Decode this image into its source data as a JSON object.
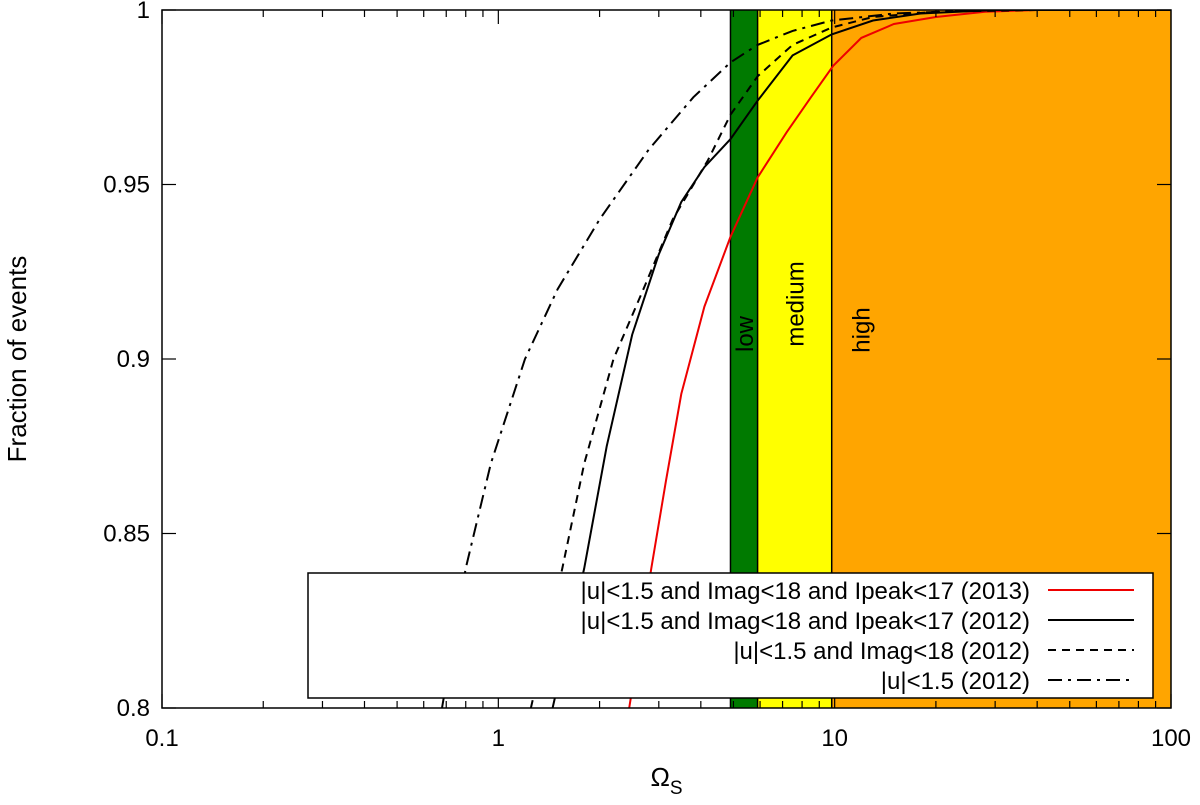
{
  "chart_data": {
    "type": "line",
    "xscale": "log",
    "xlim": [
      0.1,
      100
    ],
    "ylim": [
      0.8,
      1.0
    ],
    "xlabel": "Ω",
    "xlabel_sub": "S",
    "ylabel": "Fraction of events",
    "grid": false,
    "legend_position": "bottom-right",
    "x_tick_labels": [
      "0.1",
      "1",
      "10",
      "100"
    ],
    "y_tick_labels": [
      "0.8",
      "0.85",
      "0.9",
      "0.95",
      "1"
    ],
    "x_ticks": [
      0.1,
      1,
      10,
      100
    ],
    "y_ticks": [
      0.8,
      0.85,
      0.9,
      0.95,
      1.0
    ],
    "bands": [
      {
        "label": "low",
        "from": 4.9,
        "to": 5.9,
        "color": "#007a00"
      },
      {
        "label": "medium",
        "from": 5.9,
        "to": 9.8,
        "color": "#ffff00"
      },
      {
        "label": "high",
        "from": 9.8,
        "to": 100,
        "color": "#ffa500"
      }
    ],
    "series": [
      {
        "name": "|u|<1.5 and Imag<18 and Ipeak<17 (2013)",
        "color": "#ee0000",
        "dash": "solid",
        "points": [
          [
            2.45,
            0.8
          ],
          [
            2.85,
            0.84
          ],
          [
            3.15,
            0.865
          ],
          [
            3.5,
            0.89
          ],
          [
            4.1,
            0.915
          ],
          [
            4.9,
            0.935
          ],
          [
            5.9,
            0.952
          ],
          [
            7.2,
            0.965
          ],
          [
            8.5,
            0.975
          ],
          [
            9.9,
            0.984
          ],
          [
            12,
            0.992
          ],
          [
            15,
            0.996
          ],
          [
            20,
            0.998
          ],
          [
            28,
            0.9995
          ],
          [
            40,
            1.0
          ],
          [
            100,
            1.0
          ]
        ]
      },
      {
        "name": "|u|<1.5 and Imag<18 and Ipeak<17 (2012)",
        "color": "#000000",
        "dash": "solid",
        "points": [
          [
            1.45,
            0.8
          ],
          [
            1.8,
            0.84
          ],
          [
            2.1,
            0.875
          ],
          [
            2.5,
            0.907
          ],
          [
            3.0,
            0.93
          ],
          [
            3.5,
            0.945
          ],
          [
            4.1,
            0.955
          ],
          [
            4.9,
            0.963
          ],
          [
            5.9,
            0.974
          ],
          [
            7.5,
            0.987
          ],
          [
            9.8,
            0.993
          ],
          [
            13,
            0.997
          ],
          [
            18,
            0.999
          ],
          [
            30,
            1.0
          ],
          [
            100,
            1.0
          ]
        ]
      },
      {
        "name": "|u|<1.5 and Imag<18 (2012)",
        "color": "#000000",
        "dash": "dashed",
        "points": [
          [
            1.25,
            0.8
          ],
          [
            1.55,
            0.84
          ],
          [
            1.8,
            0.87
          ],
          [
            2.2,
            0.9
          ],
          [
            2.7,
            0.92
          ],
          [
            3.3,
            0.94
          ],
          [
            4.2,
            0.957
          ],
          [
            4.9,
            0.97
          ],
          [
            5.9,
            0.981
          ],
          [
            7.5,
            0.99
          ],
          [
            9.8,
            0.995
          ],
          [
            13,
            0.998
          ],
          [
            20,
            0.9995
          ],
          [
            40,
            1.0
          ],
          [
            100,
            1.0
          ]
        ]
      },
      {
        "name": "|u|<1.5 (2012)",
        "color": "#000000",
        "dash": "dashdot",
        "points": [
          [
            0.68,
            0.8
          ],
          [
            0.8,
            0.84
          ],
          [
            0.95,
            0.87
          ],
          [
            1.2,
            0.9
          ],
          [
            1.5,
            0.92
          ],
          [
            2.0,
            0.94
          ],
          [
            2.8,
            0.96
          ],
          [
            3.8,
            0.975
          ],
          [
            4.9,
            0.985
          ],
          [
            5.9,
            0.99
          ],
          [
            7.5,
            0.994
          ],
          [
            9.8,
            0.997
          ],
          [
            15,
            0.999
          ],
          [
            30,
            1.0
          ],
          [
            100,
            1.0
          ]
        ]
      }
    ]
  }
}
